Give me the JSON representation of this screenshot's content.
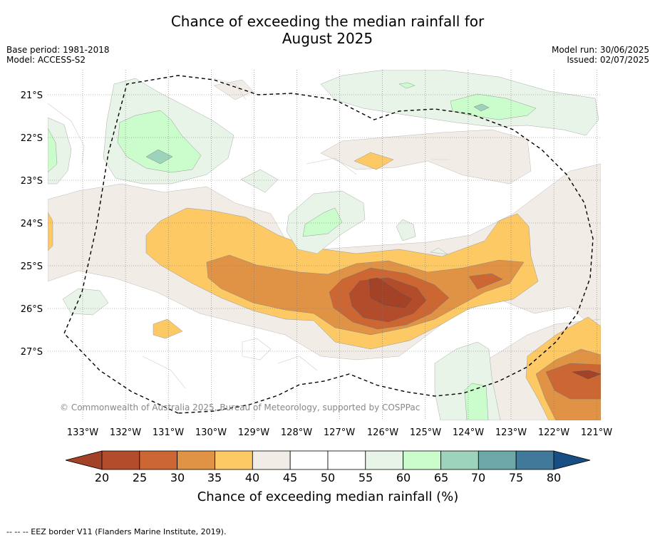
{
  "title_line1": "Chance of exceeding the median rainfall for",
  "title_line2": "August 2025",
  "info": {
    "base_period": "Base period: 1981-2018",
    "model": "Model: ACCESS-S2",
    "model_run": "Model run: 30/06/2025",
    "issued": "Issued: 02/07/2025"
  },
  "map": {
    "lat_labels": [
      "21°S",
      "22°S",
      "23°S",
      "24°S",
      "25°S",
      "26°S",
      "27°S"
    ],
    "lon_labels": [
      "133°W",
      "132°W",
      "131°W",
      "130°W",
      "129°W",
      "128°W",
      "127°W",
      "126°W",
      "125°W",
      "124°W",
      "123°W",
      "122°W",
      "121°W"
    ],
    "copyright": "© Commonwealth of Australia 2025, Bureau of Meteorology, supported by COSPPac",
    "gridlines": true
  },
  "colorbar": {
    "ticks": [
      "20",
      "25",
      "30",
      "35",
      "40",
      "45",
      "50",
      "55",
      "60",
      "65",
      "70",
      "75",
      "80"
    ],
    "colors": [
      "#a34226",
      "#b34c2a",
      "#cc6633",
      "#e09345",
      "#fdc964",
      "#f1ece6",
      "#ffffff",
      "#ffffff",
      "#e9f4e9",
      "#cafccc",
      "#9ed3bb",
      "#6ea7a7",
      "#41799b",
      "#174f85"
    ],
    "label": "Chance of exceeding median rainfall (%)"
  },
  "footer_note": "--  --  -- EEZ border V11 (Flanders Marine Institute, 2019)."
}
